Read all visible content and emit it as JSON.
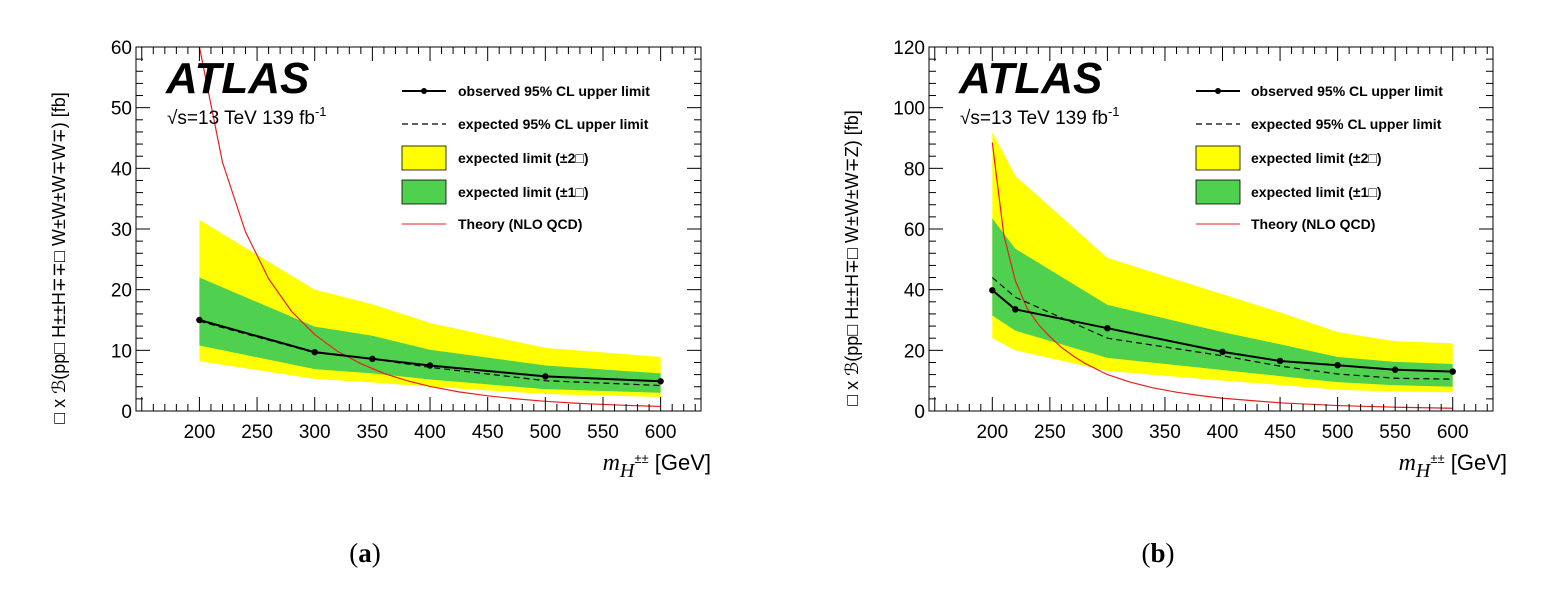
{
  "colors": {
    "band2": "#ffff00",
    "band1": "#4fd04f",
    "theory": "#e8201c",
    "observed": "#000000",
    "expected": "#000000"
  },
  "chart_data": [
    {
      "type": "line",
      "panel": "a",
      "caption_open": "(",
      "caption_letter": "a",
      "caption_close": ")",
      "atlas_label": "ATLAS",
      "energy_label_prefix": "√s=13 TeV 139 fb",
      "energy_label_sup": "-1",
      "ylabel": "□ x ℬ(pp□  H±±H∓∓□  W±W±W∓W∓)  [fb]",
      "xlabel_m": "m",
      "xlabel_H": "H",
      "xlabel_sup": "±±",
      "xlabel_unit": " [GeV]",
      "xlim": [
        145,
        635
      ],
      "ylim": [
        0,
        60
      ],
      "xticks": [
        200,
        250,
        300,
        350,
        400,
        450,
        500,
        550,
        600
      ],
      "yticks": [
        0,
        10,
        20,
        30,
        40,
        50,
        60
      ],
      "legend": {
        "observed": "observed 95% CL upper limit",
        "expected": "expected 95% CL upper limit",
        "band2": "expected limit (±2□)",
        "band1": "expected limit (±1□)",
        "theory": "Theory (NLO QCD)"
      },
      "series": [
        {
          "name": "observed",
          "x": [
            200,
            300,
            350,
            400,
            500,
            600
          ],
          "values": [
            15.0,
            9.7,
            8.6,
            7.5,
            5.7,
            4.9
          ]
        },
        {
          "name": "expected",
          "x": [
            200,
            300,
            350,
            400,
            500,
            600
          ],
          "values": [
            14.8,
            9.6,
            8.6,
            7.2,
            5.0,
            4.2
          ]
        },
        {
          "name": "band1",
          "x": [
            200,
            300,
            350,
            400,
            500,
            600
          ],
          "low": [
            10.8,
            6.9,
            6.2,
            5.2,
            3.6,
            3.0
          ],
          "high": [
            22.0,
            13.9,
            12.4,
            10.1,
            7.5,
            6.2
          ]
        },
        {
          "name": "band2",
          "x": [
            200,
            300,
            350,
            400,
            500,
            600
          ],
          "low": [
            8.2,
            5.3,
            4.7,
            4.0,
            2.8,
            2.3
          ],
          "high": [
            31.5,
            20.0,
            17.6,
            14.5,
            10.4,
            8.9
          ]
        },
        {
          "name": "theory",
          "x": [
            200,
            220,
            240,
            260,
            280,
            300,
            320,
            340,
            360,
            380,
            400,
            425,
            450,
            475,
            500,
            525,
            550,
            575,
            600
          ],
          "values": [
            60.0,
            41.0,
            29.5,
            21.8,
            16.4,
            12.6,
            9.8,
            7.8,
            6.2,
            5.0,
            4.05,
            3.15,
            2.5,
            2.0,
            1.6,
            1.3,
            1.08,
            0.9,
            0.75
          ]
        }
      ]
    },
    {
      "type": "line",
      "panel": "b",
      "caption_open": "(",
      "caption_letter": "b",
      "caption_close": ")",
      "atlas_label": "ATLAS",
      "energy_label_prefix": "√s=13 TeV 139 fb",
      "energy_label_sup": "-1",
      "ylabel": "□ x ℬ(pp□  H±±H∓□  W±W±W∓Z)  [fb]",
      "xlabel_m": "m",
      "xlabel_H": "H",
      "xlabel_sup": "±±",
      "xlabel_unit": " [GeV]",
      "xlim": [
        145,
        635
      ],
      "ylim": [
        0,
        120
      ],
      "xticks": [
        200,
        250,
        300,
        350,
        400,
        450,
        500,
        550,
        600
      ],
      "yticks": [
        0,
        20,
        40,
        60,
        80,
        100,
        120
      ],
      "legend": {
        "observed": "observed 95% CL upper limit",
        "expected": "expected 95% CL upper limit",
        "band2": "expected limit (±2□)",
        "band1": "expected limit (±1□)",
        "theory": "Theory (NLO QCD)"
      },
      "series": [
        {
          "name": "observed",
          "x": [
            200,
            220,
            300,
            400,
            450,
            500,
            550,
            600
          ],
          "values": [
            39.8,
            33.5,
            27.3,
            19.5,
            16.5,
            15.1,
            13.6,
            13.0
          ]
        },
        {
          "name": "expected",
          "x": [
            200,
            220,
            300,
            400,
            450,
            500,
            550,
            600
          ],
          "values": [
            44.0,
            37.5,
            24.0,
            18.2,
            14.8,
            12.2,
            10.8,
            10.5
          ]
        },
        {
          "name": "band1",
          "x": [
            200,
            220,
            300,
            400,
            450,
            500,
            550,
            600
          ],
          "low": [
            31.5,
            26.5,
            17.5,
            13.5,
            11.5,
            9.5,
            8.5,
            8.0
          ],
          "high": [
            63.5,
            53.5,
            35.0,
            26.0,
            22.0,
            17.8,
            16.2,
            15.5
          ]
        },
        {
          "name": "band2",
          "x": [
            200,
            220,
            300,
            400,
            450,
            500,
            550,
            600
          ],
          "low": [
            24.0,
            20.0,
            13.2,
            10.0,
            8.6,
            7.0,
            6.4,
            6.2
          ],
          "high": [
            92.0,
            77.5,
            50.5,
            38.5,
            32.5,
            26.0,
            23.0,
            22.3
          ]
        },
        {
          "name": "theory",
          "x": [
            200,
            210,
            220,
            230,
            240,
            250,
            260,
            270,
            280,
            300,
            320,
            340,
            360,
            380,
            400,
            450,
            500,
            550,
            600
          ],
          "values": [
            88.5,
            58.0,
            43.0,
            34.0,
            28.5,
            24.5,
            21.0,
            18.2,
            15.8,
            12.0,
            9.5,
            7.6,
            6.2,
            5.1,
            4.2,
            2.7,
            1.8,
            1.25,
            0.9
          ]
        }
      ]
    }
  ]
}
